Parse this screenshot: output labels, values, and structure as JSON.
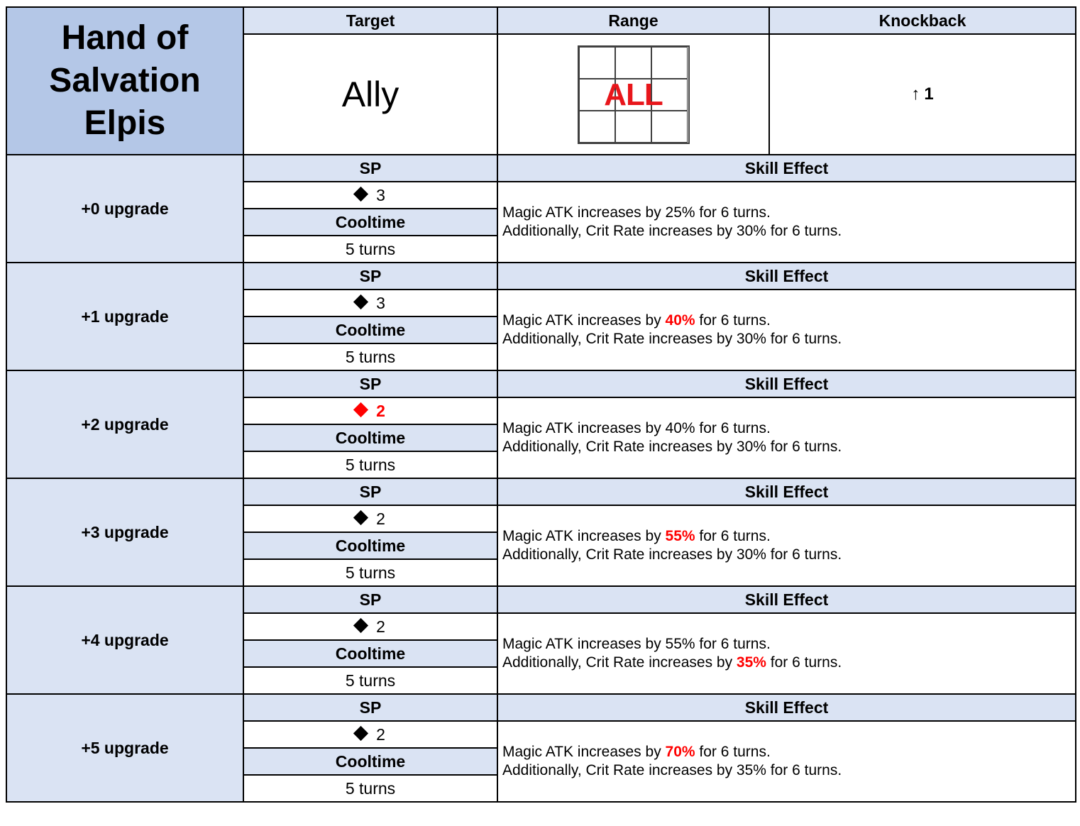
{
  "title_lines": [
    "Hand of",
    "Salvation",
    "Elpis"
  ],
  "headers": {
    "target": "Target",
    "range": "Range",
    "knockback": "Knockback",
    "sp": "SP",
    "cooltime": "Cooltime",
    "skill_effect": "Skill Effect"
  },
  "target_value": "Ally",
  "range_label": "ALL",
  "knockback": {
    "arrow": "↑",
    "value": "1"
  },
  "colors": {
    "title_bg": "#b4c7e7",
    "header_bg": "#dae3f3",
    "highlight": "#ff0000"
  },
  "upgrades": [
    {
      "label": "+0 upgrade",
      "sp": "3",
      "sp_highlight": false,
      "cooltime": "5 turns",
      "effect_line1": {
        "pre": "Magic ATK increases by ",
        "val": "25%",
        "highlight": false,
        "post": " for 6 turns."
      },
      "effect_line2": {
        "pre": "Additionally, Crit Rate increases by ",
        "val": "30%",
        "highlight": false,
        "post": " for 6 turns."
      }
    },
    {
      "label": "+1 upgrade",
      "sp": "3",
      "sp_highlight": false,
      "cooltime": "5 turns",
      "effect_line1": {
        "pre": "Magic ATK increases by ",
        "val": "40%",
        "highlight": true,
        "post": " for 6 turns."
      },
      "effect_line2": {
        "pre": "Additionally, Crit Rate increases by ",
        "val": "30%",
        "highlight": false,
        "post": " for 6 turns."
      }
    },
    {
      "label": "+2 upgrade",
      "sp": "2",
      "sp_highlight": true,
      "cooltime": "5 turns",
      "effect_line1": {
        "pre": "Magic ATK increases by ",
        "val": "40%",
        "highlight": false,
        "post": " for 6 turns."
      },
      "effect_line2": {
        "pre": "Additionally, Crit Rate increases by ",
        "val": "30%",
        "highlight": false,
        "post": " for 6 turns."
      }
    },
    {
      "label": "+3 upgrade",
      "sp": "2",
      "sp_highlight": false,
      "cooltime": "5 turns",
      "effect_line1": {
        "pre": "Magic ATK increases by ",
        "val": "55%",
        "highlight": true,
        "post": " for 6 turns."
      },
      "effect_line2": {
        "pre": "Additionally, Crit Rate increases by ",
        "val": "30%",
        "highlight": false,
        "post": " for 6 turns."
      }
    },
    {
      "label": "+4 upgrade",
      "sp": "2",
      "sp_highlight": false,
      "cooltime": "5 turns",
      "effect_line1": {
        "pre": "Magic ATK increases by ",
        "val": "55%",
        "highlight": false,
        "post": " for 6 turns."
      },
      "effect_line2": {
        "pre": "Additionally, Crit Rate increases by ",
        "val": "35%",
        "highlight": true,
        "post": " for 6 turns."
      }
    },
    {
      "label": "+5 upgrade",
      "sp": "2",
      "sp_highlight": false,
      "cooltime": "5 turns",
      "effect_line1": {
        "pre": "Magic ATK increases by ",
        "val": "70%",
        "highlight": true,
        "post": " for 6 turns."
      },
      "effect_line2": {
        "pre": "Additionally, Crit Rate increases by ",
        "val": "35%",
        "highlight": false,
        "post": " for 6 turns."
      }
    }
  ]
}
